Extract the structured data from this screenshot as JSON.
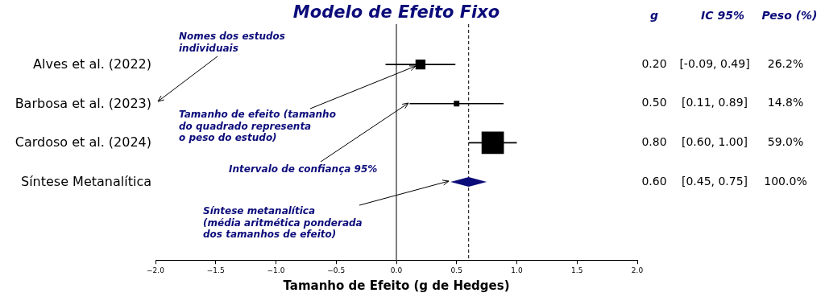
{
  "chart_data": {
    "type": "forest",
    "title": "Modelo de Efeito Fixo",
    "x_label": "Tamanho de Efeito (g de Hedges)",
    "column_headers": [
      "g",
      "IC 95%",
      "Peso (%)"
    ],
    "categories": [
      "Alves et al. (2022)",
      "Barbosa et al. (2023)",
      "Cardoso et al. (2024)"
    ],
    "values": [
      0.2,
      0.5,
      0.8
    ],
    "value_labels": [
      "0.20",
      "0.50",
      "0.80"
    ],
    "ci_low": [
      -0.09,
      0.11,
      0.6
    ],
    "ci_high": [
      0.49,
      0.89,
      1.0
    ],
    "ci_labels": [
      "[-0.09, 0.49]",
      "[0.11, 0.89]",
      "[0.60, 1.00]"
    ],
    "weights": [
      26.2,
      14.8,
      59.0
    ],
    "weight_labels": [
      "26.2%",
      "14.8%",
      "59.0%"
    ],
    "color": "#000000",
    "summary": {
      "name": "Síntese Metanalítica",
      "value": 0.6,
      "value_label": "0.60",
      "ci_low": 0.45,
      "ci_high": 0.75,
      "ci_label": "[0.45, 0.75]",
      "weight": 100,
      "weight_label": "100.0%",
      "color": "#0b0b7a"
    },
    "null_effect": 0,
    "xlim": [
      -2,
      2
    ],
    "xticks": [
      {
        "value": -2,
        "label": "−2.0"
      },
      {
        "value": -1.5,
        "label": "−1.5"
      },
      {
        "value": -1,
        "label": "−1.0"
      },
      {
        "value": -0.5,
        "label": "−0.5"
      },
      {
        "value": 0,
        "label": "0.0"
      },
      {
        "value": 0.5,
        "label": "0.5"
      },
      {
        "value": 1,
        "label": "1.0"
      },
      {
        "value": 1.5,
        "label": "1.5"
      },
      {
        "value": 2,
        "label": "2.0"
      }
    ],
    "grid": false,
    "annotations": [
      "Nomes dos estudos\nindividuais",
      "Tamanho de efeito (tamanho\ndo quadrado representa\no peso do estudo)",
      "Intervalo de confiança 95%",
      "Síntese metanalítica\n(média aritmética ponderada\ndos tamanhos de efeito)"
    ]
  }
}
